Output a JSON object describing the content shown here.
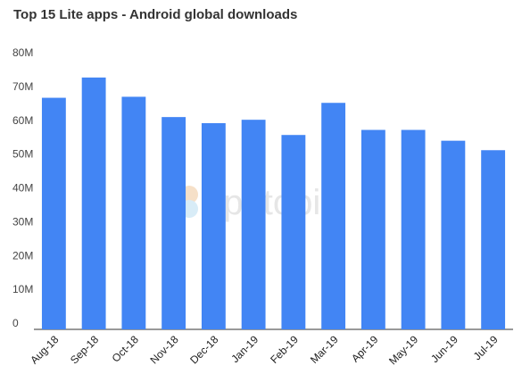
{
  "chart_data": {
    "type": "bar",
    "title": "Top 15 Lite apps - Android global downloads",
    "xlabel": "",
    "ylabel": "",
    "categories": [
      "Aug-18",
      "Sep-18",
      "Oct-18",
      "Nov-18",
      "Dec-18",
      "Jan-19",
      "Feb-19",
      "Mar-19",
      "Apr-19",
      "May-19",
      "Jun-19",
      "Jul-19"
    ],
    "values": [
      68.5,
      74.5,
      68.8,
      62.8,
      61.0,
      62.0,
      57.5,
      67.0,
      59.0,
      59.0,
      55.8,
      53.0
    ],
    "ylim": [
      0,
      80
    ],
    "yticks": [
      0,
      10,
      20,
      30,
      40,
      50,
      60,
      70,
      80
    ],
    "ytick_labels": [
      "0",
      "10M",
      "20M",
      "30M",
      "40M",
      "50M",
      "60M",
      "70M",
      "80M"
    ],
    "grid": false,
    "legend": "none",
    "bar_color": "#4285f4"
  },
  "watermark": {
    "text": "apptopia"
  }
}
